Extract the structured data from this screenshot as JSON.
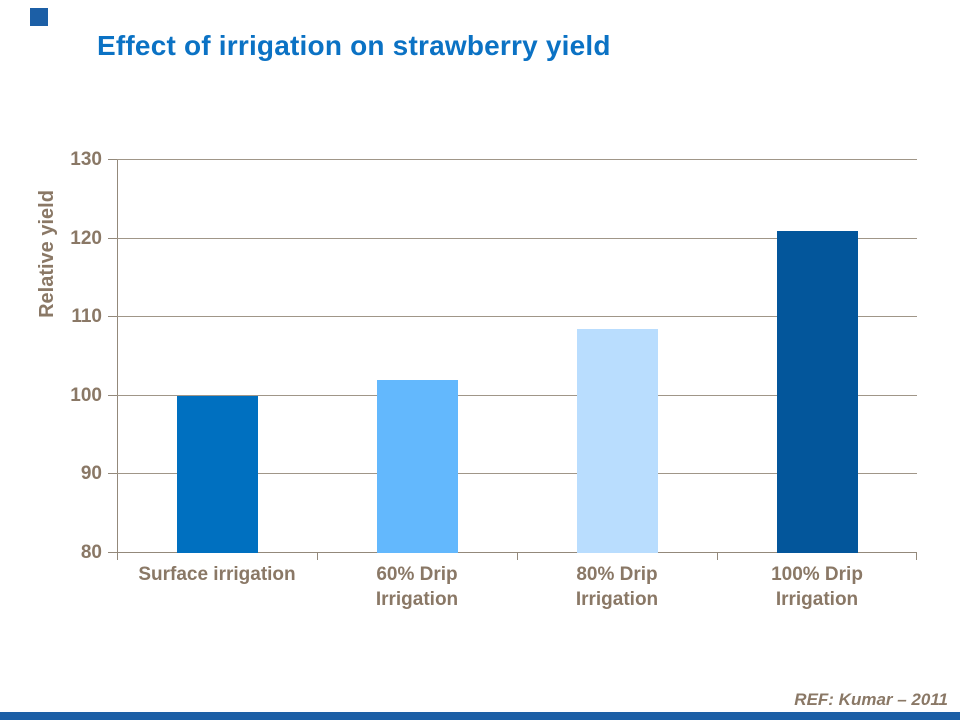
{
  "slide": {
    "title": "Effect of irrigation on strawberry yield",
    "reference": "REF:  Kumar – 2011",
    "accent_color": "#1C5FA6"
  },
  "colors": {
    "title_blue": "#0B72C4",
    "text_brown": "#8A7866",
    "gridline": "#A09688",
    "axis": "#93897B"
  },
  "chart_data": {
    "type": "bar",
    "title": "Effect of irrigation on strawberry yield",
    "categories": [
      "Surface irrigation",
      "60% Drip\nIrrigation",
      "80% Drip\nIrrigation",
      "100% Drip\nIrrigation"
    ],
    "values": [
      100,
      102,
      108.5,
      121
    ],
    "bar_colors": [
      "#0070C0",
      "#63B8FD",
      "#B9DDFE",
      "#03569B"
    ],
    "xlabel": "",
    "ylabel": "Relative yield",
    "ylim": [
      80,
      130
    ],
    "y_ticks": [
      80,
      90,
      100,
      110,
      120,
      130
    ],
    "grid": "horizontal",
    "legend": "none"
  }
}
